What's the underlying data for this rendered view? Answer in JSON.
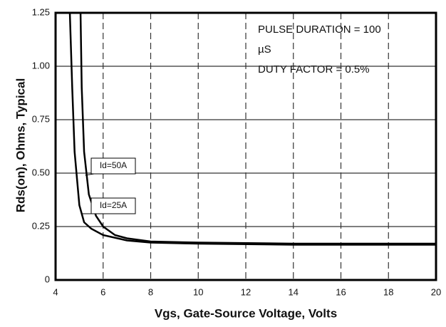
{
  "chart_data": {
    "type": "line",
    "ylabel": "Rds(on), Ohms, Typical",
    "xlabel": "Vgs, Gate-Source Voltage, Volts",
    "annotations": [
      "PULSE DURATION = 100",
      "µS",
      "DUTY FACTOR = 0.5%"
    ],
    "xlim": [
      4,
      20
    ],
    "xticks": [
      4,
      6,
      8,
      10,
      12,
      14,
      16,
      18,
      20
    ],
    "ylim": [
      0,
      1.25
    ],
    "yticks": [
      0,
      0.25,
      {
        "value": 0.5,
        "label": "0.50"
      },
      0.75,
      {
        "value": 1,
        "label": "1.00"
      },
      1.25
    ],
    "grid": true,
    "series": [
      {
        "name": "Id=50A",
        "color": "#000000",
        "x": [
          5.05,
          5.1,
          5.2,
          5.4,
          5.7,
          6,
          6.5,
          7,
          8,
          10,
          14,
          20
        ],
        "values": [
          1.25,
          0.9,
          0.6,
          0.4,
          0.3,
          0.25,
          0.21,
          0.195,
          0.18,
          0.175,
          0.17,
          0.17
        ]
      },
      {
        "name": "Id=25A",
        "color": "#000000",
        "x": [
          4.6,
          4.7,
          4.8,
          5,
          5.2,
          5.5,
          6,
          7,
          8,
          10,
          14,
          20
        ],
        "values": [
          1.25,
          0.9,
          0.6,
          0.35,
          0.27,
          0.24,
          0.21,
          0.185,
          0.175,
          0.17,
          0.165,
          0.165
        ]
      }
    ]
  }
}
